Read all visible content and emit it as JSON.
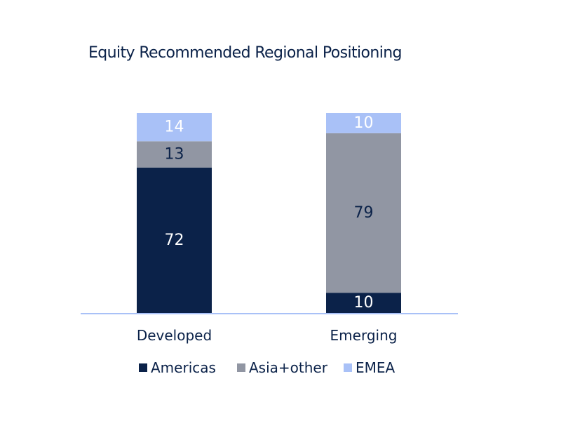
{
  "chart_data": {
    "type": "bar",
    "stacked": true,
    "title": "Equity Recommended Regional Positioning",
    "xlabel": "",
    "ylabel": "",
    "categories": [
      "Developed",
      "Emerging"
    ],
    "series": [
      {
        "name": "Americas",
        "values": [
          72,
          10
        ],
        "color": "#0b2249",
        "label_color": "#ffffff"
      },
      {
        "name": "Asia+other",
        "values": [
          13,
          79
        ],
        "color": "#9196a3",
        "label_color": "#0b2249"
      },
      {
        "name": "EMEA",
        "values": [
          14,
          10
        ],
        "color": "#a9c1f7",
        "label_color": "#ffffff"
      }
    ],
    "ylim": [
      0,
      100
    ],
    "grid": false,
    "legend_position": "bottom",
    "axis_color": "#a9c1f7",
    "text_color": "#0b2249"
  }
}
